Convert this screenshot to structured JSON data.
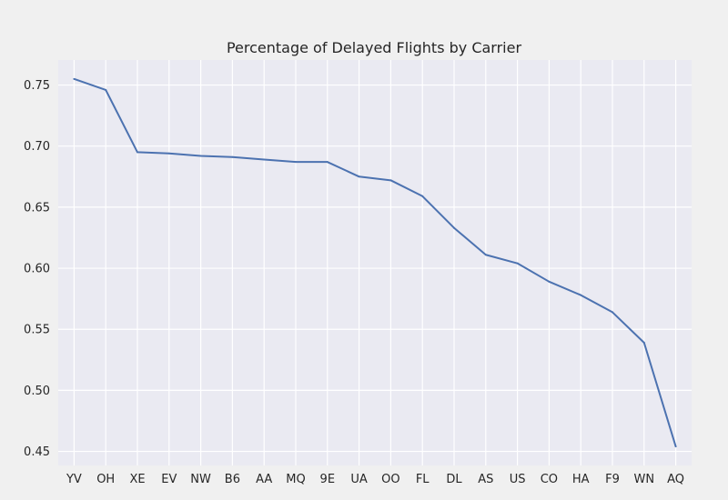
{
  "chart_data": {
    "type": "line",
    "title": "Percentage of Delayed Flights by Carrier",
    "xlabel": "",
    "ylabel": "",
    "categories": [
      "YV",
      "OH",
      "XE",
      "EV",
      "NW",
      "B6",
      "AA",
      "MQ",
      "9E",
      "UA",
      "OO",
      "FL",
      "DL",
      "AS",
      "US",
      "CO",
      "HA",
      "F9",
      "WN",
      "AQ"
    ],
    "series": [
      {
        "values": [
          0.755,
          0.746,
          0.695,
          0.694,
          0.692,
          0.691,
          0.689,
          0.687,
          0.687,
          0.675,
          0.672,
          0.659,
          0.633,
          0.611,
          0.604,
          0.589,
          0.578,
          0.564,
          0.539,
          0.454
        ]
      }
    ],
    "ylim": [
      0.4385,
      0.7705
    ],
    "yticks": [
      0.45,
      0.5,
      0.55,
      0.6,
      0.65,
      0.7,
      0.75
    ],
    "ytick_labels": [
      "0.45",
      "0.50",
      "0.55",
      "0.60",
      "0.65",
      "0.70",
      "0.75"
    ],
    "grid": true,
    "legend": "none",
    "colors": {
      "line": "#4c72b0",
      "plot_background": "#eaeaf2",
      "figure_background": "#f0f0f0",
      "grid": "#ffffff",
      "text": "#262626"
    }
  }
}
